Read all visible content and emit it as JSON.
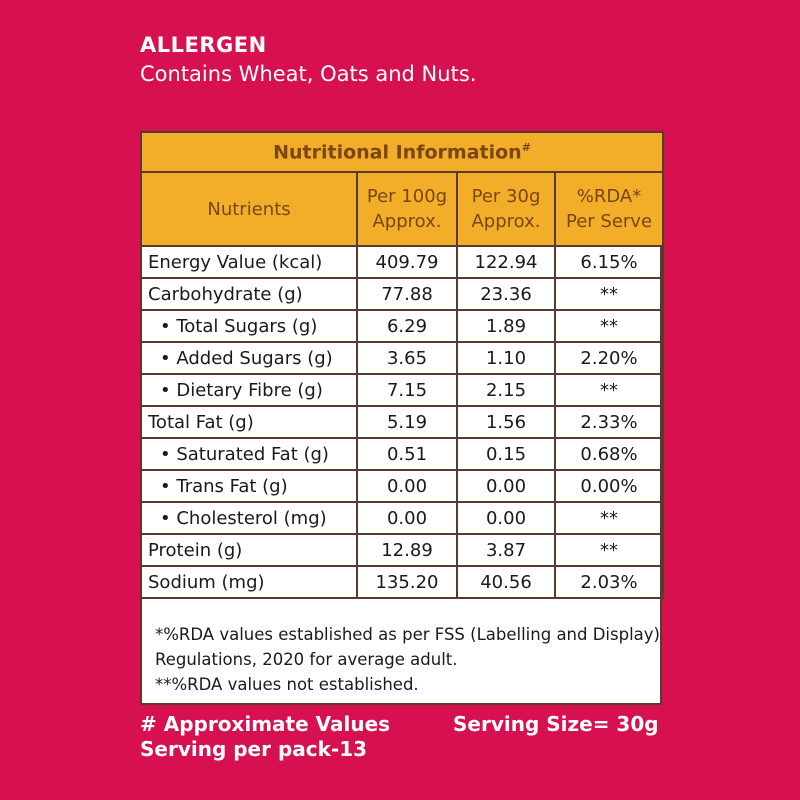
{
  "allergen": {
    "title": "ALLERGEN",
    "text": "Contains Wheat, Oats and Nuts."
  },
  "table": {
    "title": "Nutritional Information",
    "title_mark": "#",
    "columns": [
      {
        "line1": "Nutrients",
        "line2": ""
      },
      {
        "line1": "Per 100g",
        "line2": "Approx."
      },
      {
        "line1": "Per 30g",
        "line2": "Approx."
      },
      {
        "line1": "%RDA*",
        "line2": "Per Serve"
      }
    ],
    "rows": [
      {
        "name": "Energy Value (kcal)",
        "per100": "409.79",
        "per30": "122.94",
        "rda": "6.15%"
      },
      {
        "name": "Carbohydrate (g)",
        "per100": "77.88",
        "per30": "23.36",
        "rda": "**"
      },
      {
        "name": "• Total Sugars (g)",
        "per100": "6.29",
        "per30": "1.89",
        "rda": "**"
      },
      {
        "name": "• Added Sugars (g)",
        "per100": "3.65",
        "per30": "1.10",
        "rda": "2.20%"
      },
      {
        "name": "• Dietary Fibre (g)",
        "per100": "7.15",
        "per30": "2.15",
        "rda": "**"
      },
      {
        "name": "Total Fat (g)",
        "per100": "5.19",
        "per30": "1.56",
        "rda": "2.33%"
      },
      {
        "name": "• Saturated Fat (g)",
        "per100": "0.51",
        "per30": "0.15",
        "rda": "0.68%"
      },
      {
        "name": "• Trans Fat (g)",
        "per100": "0.00",
        "per30": "0.00",
        "rda": "0.00%"
      },
      {
        "name": "• Cholesterol (mg)",
        "per100": "0.00",
        "per30": "0.00",
        "rda": "**"
      },
      {
        "name": "Protein (g)",
        "per100": "12.89",
        "per30": "3.87",
        "rda": "**"
      },
      {
        "name": "Sodium (mg)",
        "per100": "135.20",
        "per30": "40.56",
        "rda": "2.03%"
      }
    ],
    "footnote_1": "*%RDA values established as per FSS (Labelling and Display) Regulations, 2020 for average adult.",
    "footnote_2": "**%RDA values not established."
  },
  "bottom": {
    "approx_values": "# Approximate Values",
    "serving_per_pack": "Serving per pack-13",
    "serving_size": "Serving Size= 30g"
  },
  "colors": {
    "background": "#D7114F",
    "header_fill": "#F2AE28",
    "header_text": "#7a4616",
    "border": "#5a3a2a"
  }
}
